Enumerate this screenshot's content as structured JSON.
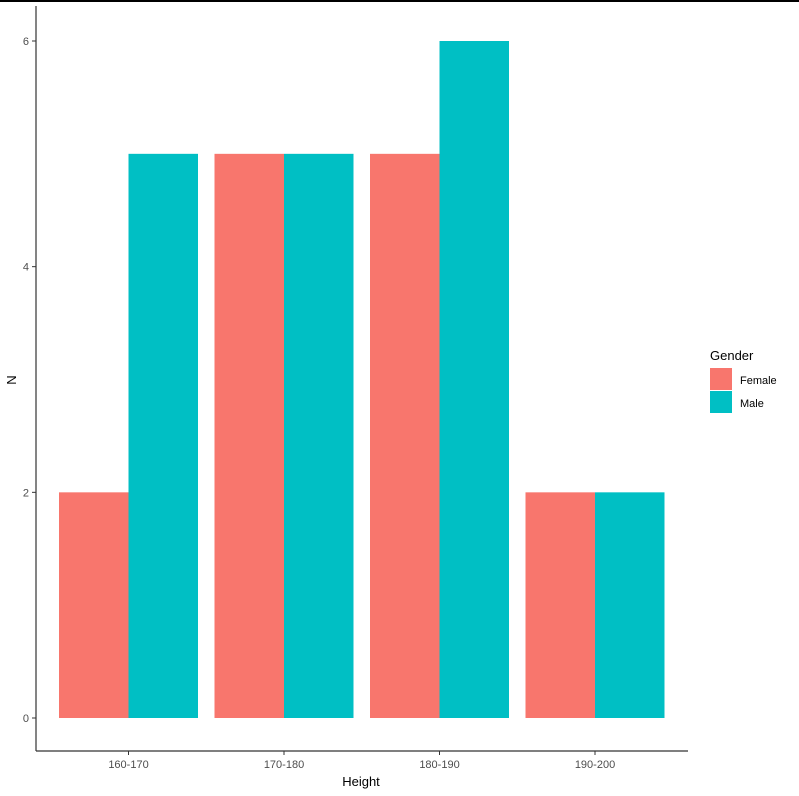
{
  "chart_data": {
    "type": "bar",
    "title": "",
    "xlabel": "Height",
    "ylabel": "N",
    "categories": [
      "160-170",
      "170-180",
      "180-190",
      "190-200"
    ],
    "series": [
      {
        "name": "Female",
        "color": "#F8766D",
        "values": [
          2,
          5,
          5,
          2
        ]
      },
      {
        "name": "Male",
        "color": "#00BFC4",
        "values": [
          5,
          5,
          6,
          2
        ]
      }
    ],
    "yticks": [
      0,
      2,
      4,
      6
    ],
    "ylim": [
      0,
      6
    ],
    "grid": false,
    "legend": {
      "title": "Gender",
      "position": "right",
      "entries": [
        "Female",
        "Male"
      ]
    }
  }
}
